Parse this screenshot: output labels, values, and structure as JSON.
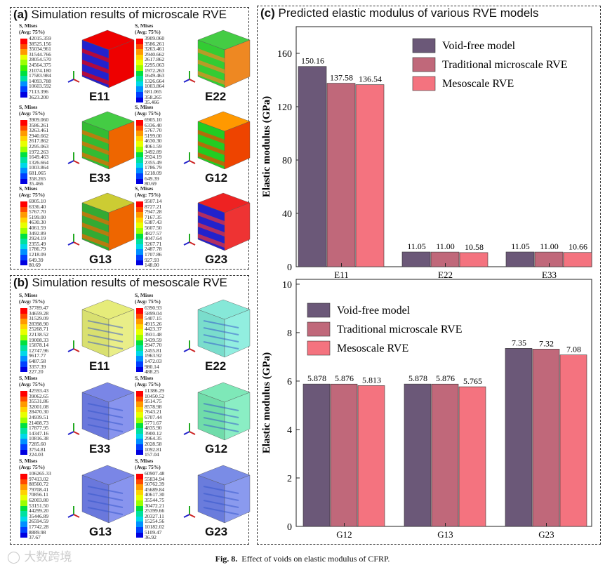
{
  "panel_a": {
    "tag": "(a)",
    "title": "Simulation results of microscale RVE",
    "items": [
      {
        "label": "E11",
        "head1": "S, Mises",
        "head2": "(Avg: 75%)",
        "values": [
          "42015.359",
          "38525.156",
          "35034.961",
          "31544.766",
          "28054.570",
          "24564.375",
          "21074.180",
          "17583.984",
          "14093.788",
          "10603.592",
          "7113.396",
          "3623.200"
        ]
      },
      {
        "label": "E22",
        "head1": "S, Mises",
        "head2": "(Avg: 75%)",
        "values": [
          "3909.060",
          "3586.261",
          "3263.461",
          "2940.662",
          "2617.862",
          "2295.063",
          "1972.263",
          "1649.463",
          "1326.664",
          "1003.864",
          "681.065",
          "358.265",
          "35.466"
        ]
      },
      {
        "label": "E33",
        "head1": "S, Mises",
        "head2": "(Avg: 75%)",
        "values": [
          "3909.060",
          "3586.261",
          "3263.461",
          "2940.662",
          "2617.862",
          "2295.063",
          "1972.263",
          "1649.463",
          "1326.664",
          "1003.864",
          "681.065",
          "358.265",
          "35.466"
        ]
      },
      {
        "label": "G12",
        "head1": "S, Mises",
        "head2": "(Avg: 75%)",
        "values": [
          "6905.10",
          "6336.40",
          "5767.70",
          "5199.00",
          "4630.30",
          "4061.59",
          "3492.89",
          "2924.19",
          "2355.49",
          "1786.79",
          "1218.09",
          "649.39",
          "80.69"
        ]
      },
      {
        "label": "G13",
        "head1": "S, Mises",
        "head2": "(Avg: 75%)",
        "values": [
          "6905.10",
          "6336.40",
          "5767.70",
          "5199.00",
          "4630.30",
          "4061.59",
          "3492.89",
          "2924.19",
          "2355.49",
          "1786.79",
          "1218.09",
          "649.39",
          "80.69"
        ]
      },
      {
        "label": "G23",
        "head1": "S, Mises",
        "head2": "(Avg: 75%)",
        "values": [
          "9507.14",
          "8727.21",
          "7947.28",
          "7167.35",
          "6387.43",
          "5607.50",
          "4827.57",
          "4047.64",
          "3267.71",
          "2487.78",
          "1707.86",
          "927.93",
          "148.00"
        ]
      }
    ]
  },
  "panel_b": {
    "tag": "(b)",
    "title": "Simulation results of mesoscale RVE",
    "items": [
      {
        "label": "E11",
        "head1": "S, Mises",
        "head2": "(Avg: 75%)",
        "values": [
          "37789.47",
          "34659.28",
          "31529.09",
          "28398.90",
          "25268.71",
          "22138.52",
          "19008.33",
          "15878.14",
          "12747.96",
          "9617.77",
          "6487.58",
          "3357.39",
          "227.20"
        ]
      },
      {
        "label": "E22",
        "head1": "S, Mises",
        "head2": "(Avg: 75%)",
        "values": [
          "6390.93",
          "5899.04",
          "5407.15",
          "4915.26",
          "4423.37",
          "3931.48",
          "3439.59",
          "2947.70",
          "2455.81",
          "1963.92",
          "1472.03",
          "980.14",
          "488.25"
        ]
      },
      {
        "label": "E33",
        "head1": "S, Mises",
        "head2": "(Avg: 75%)",
        "values": [
          "42593.43",
          "39062.65",
          "35531.86",
          "32001.08",
          "28470.30",
          "24939.51",
          "21408.73",
          "17877.95",
          "14347.16",
          "10816.38",
          "7285.60",
          "3754.81",
          "224.03"
        ]
      },
      {
        "label": "G12",
        "head1": "S, Mises",
        "head2": "(Avg: 75%)",
        "values": [
          "11386.29",
          "10450.52",
          "9514.75",
          "8578.98",
          "7643.21",
          "6707.44",
          "5771.67",
          "4835.90",
          "3900.12",
          "2964.35",
          "2028.58",
          "1092.81",
          "157.04"
        ]
      },
      {
        "label": "G13",
        "head1": "S, Mises",
        "head2": "(Avg: 75%)",
        "values": [
          "106265.33",
          "97413.02",
          "88560.72",
          "79708.41",
          "70856.11",
          "62003.80",
          "53151.50",
          "44299.20",
          "35446.89",
          "26594.59",
          "17742.28",
          "8889.98",
          "37.67"
        ]
      },
      {
        "label": "G23",
        "head1": "S, Mises",
        "head2": "(Avg: 75%)",
        "values": [
          "60907.48",
          "55834.94",
          "50762.39",
          "45689.84",
          "40617.30",
          "35544.75",
          "30472.21",
          "25399.66",
          "20327.11",
          "15254.56",
          "10182.02",
          "5109.47",
          "36.92"
        ]
      }
    ]
  },
  "panel_c": {
    "tag": "(c)",
    "title": "Predicted elastic modulus of various RVE models"
  },
  "chart_data": [
    {
      "type": "bar",
      "title": "",
      "xlabel": "",
      "ylabel": "Elastic modulus (GPa)",
      "categories": [
        "E11",
        "E22",
        "E33"
      ],
      "ylim": [
        0,
        180
      ],
      "yticks": [
        0,
        40,
        80,
        120,
        160
      ],
      "legend": "top-right",
      "series": [
        {
          "name": "Void-free model",
          "color": "#6b5878",
          "values": [
            150.16,
            11.05,
            11.05
          ],
          "labels": [
            "150.16",
            "11.05",
            "11.05"
          ]
        },
        {
          "name": "Traditional microscale RVE",
          "color": "#c0687a",
          "values": [
            137.58,
            11.0,
            11.0
          ],
          "labels": [
            "137.58",
            "11.00",
            "11.00"
          ]
        },
        {
          "name": "Mesoscale RVE",
          "color": "#f4737f",
          "values": [
            136.54,
            10.58,
            10.66
          ],
          "labels": [
            "136.54",
            "10.58",
            "10.66"
          ]
        }
      ]
    },
    {
      "type": "bar",
      "title": "",
      "xlabel": "",
      "ylabel": "Elastic modulus (GPa)",
      "categories": [
        "G12",
        "G13",
        "G23"
      ],
      "ylim": [
        0,
        10.2
      ],
      "yticks": [
        0,
        2,
        4,
        6,
        8,
        10
      ],
      "legend": "top-left",
      "series": [
        {
          "name": "Void-free model",
          "color": "#6b5878",
          "values": [
            5.878,
            5.878,
            7.35
          ],
          "labels": [
            "5.878",
            "5.878",
            "7.35"
          ]
        },
        {
          "name": "Traditional microscale RVE",
          "color": "#c0687a",
          "values": [
            5.876,
            5.876,
            7.32
          ],
          "labels": [
            "5.876",
            "5.876",
            "7.32"
          ]
        },
        {
          "name": "Mesoscale RVE",
          "color": "#f4737f",
          "values": [
            5.813,
            5.765,
            7.08
          ],
          "labels": [
            "5.813",
            "5.765",
            "7.08"
          ]
        }
      ]
    }
  ],
  "caption": {
    "fig": "Fig. 8.",
    "text": "Effect of voids on elastic modulus of CFRP."
  },
  "watermark": "大数跨境"
}
